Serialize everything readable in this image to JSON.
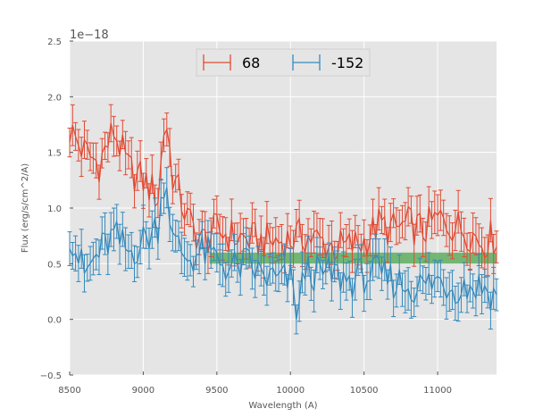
{
  "chart_data": {
    "type": "line",
    "title": "",
    "xlabel": "Wavelength (A)",
    "ylabel": "Flux (erg/s/cm^2/A)",
    "offset_text": "1e−18",
    "xlim": [
      8500,
      11400
    ],
    "ylim": [
      -0.5,
      2.5
    ],
    "xticks": [
      8500,
      9000,
      9500,
      10000,
      10500,
      11000
    ],
    "yticks": [
      -0.5,
      0.0,
      0.5,
      1.0,
      1.5,
      2.0,
      2.5
    ],
    "ytick_labels": [
      "−0.5",
      "0.0",
      "0.5",
      "1.0",
      "1.5",
      "2.0",
      "2.5"
    ],
    "grid": true,
    "legend_position": "top-center",
    "band": {
      "x_start": 9450,
      "x_end": 11400,
      "y_low": 0.5,
      "y_high": 0.6,
      "color": "#4ca64c"
    },
    "series": [
      {
        "name": "68",
        "color": "#e24a33",
        "x": [
          8500,
          8600,
          8700,
          8800,
          8900,
          9000,
          9100,
          9150,
          9200,
          9300,
          9400,
          9500,
          9600,
          9700,
          9800,
          9900,
          10000,
          10100,
          10200,
          10300,
          10400,
          10500,
          10600,
          10700,
          10800,
          10900,
          11000,
          11100,
          11200,
          11300,
          11400
        ],
        "y": [
          1.7,
          1.5,
          1.4,
          1.7,
          1.35,
          1.25,
          1.1,
          1.85,
          1.3,
          0.9,
          0.7,
          0.8,
          0.75,
          0.72,
          0.7,
          0.7,
          0.72,
          0.75,
          0.7,
          0.65,
          0.65,
          0.7,
          0.85,
          0.8,
          0.85,
          0.8,
          0.9,
          0.85,
          0.8,
          0.7,
          0.75
        ],
        "err": 0.15
      },
      {
        "name": "-152",
        "color": "#348abd",
        "x": [
          8500,
          8600,
          8700,
          8800,
          8900,
          9000,
          9100,
          9150,
          9200,
          9300,
          9400,
          9500,
          9600,
          9700,
          9800,
          9900,
          10000,
          10050,
          10100,
          10200,
          10300,
          10400,
          10500,
          10600,
          10700,
          10800,
          10900,
          11000,
          11100,
          11200,
          11300,
          11400
        ],
        "y": [
          0.8,
          0.4,
          0.6,
          0.75,
          0.6,
          0.7,
          0.85,
          1.35,
          0.7,
          0.55,
          0.6,
          0.55,
          0.45,
          0.5,
          0.4,
          0.35,
          0.35,
          0.05,
          0.45,
          0.4,
          0.4,
          0.35,
          0.4,
          0.4,
          0.35,
          0.3,
          0.3,
          0.35,
          0.3,
          0.3,
          0.3,
          0.2
        ],
        "err": 0.15
      }
    ]
  }
}
